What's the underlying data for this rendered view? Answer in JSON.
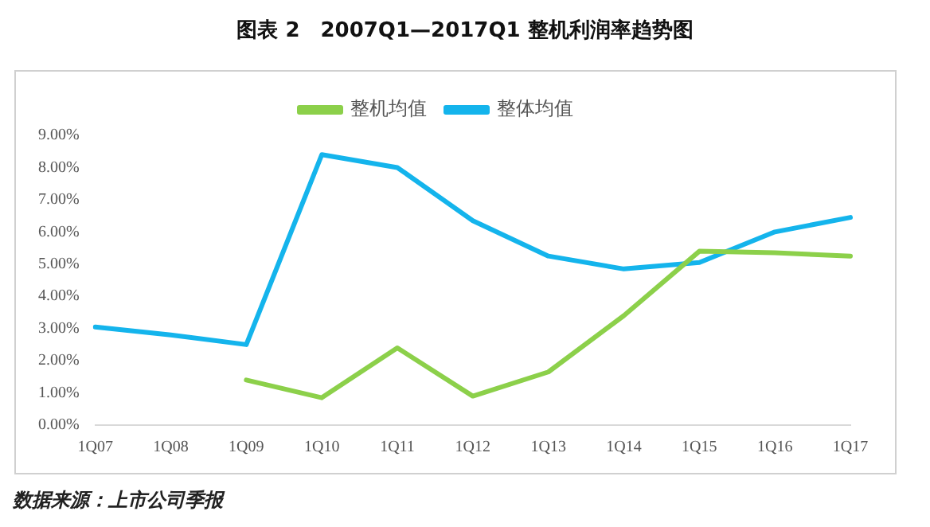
{
  "chart_data": {
    "type": "line",
    "title": "图表 2　2007Q1—2017Q1 整机利润率趋势图",
    "categories": [
      "1Q07",
      "1Q08",
      "1Q09",
      "1Q10",
      "1Q11",
      "1Q12",
      "1Q13",
      "1Q14",
      "1Q15",
      "1Q16",
      "1Q17"
    ],
    "series": [
      {
        "name": "整机均值",
        "color": "#8cd04a",
        "values": [
          null,
          null,
          1.4,
          0.85,
          2.4,
          0.9,
          1.65,
          3.4,
          5.4,
          5.35,
          5.25
        ]
      },
      {
        "name": "整体均值",
        "color": "#14b4ec",
        "values": [
          3.05,
          2.8,
          2.5,
          8.4,
          8.0,
          6.35,
          5.25,
          4.85,
          5.05,
          6.0,
          6.45
        ]
      }
    ],
    "ylim": [
      0,
      9
    ],
    "yticks": [
      {
        "value": 0,
        "label": "0.00%"
      },
      {
        "value": 1,
        "label": "1.00%"
      },
      {
        "value": 2,
        "label": "2.00%"
      },
      {
        "value": 3,
        "label": "3.00%"
      },
      {
        "value": 4,
        "label": "4.00%"
      },
      {
        "value": 5,
        "label": "5.00%"
      },
      {
        "value": 6,
        "label": "6.00%"
      },
      {
        "value": 7,
        "label": "7.00%"
      },
      {
        "value": 8,
        "label": "8.00%"
      },
      {
        "value": 9,
        "label": "9.00%"
      }
    ],
    "grid": false,
    "legend": "top",
    "marker": "none",
    "line_style": "solid",
    "annotations": [
      "数据来源：上市公司季报"
    ]
  }
}
